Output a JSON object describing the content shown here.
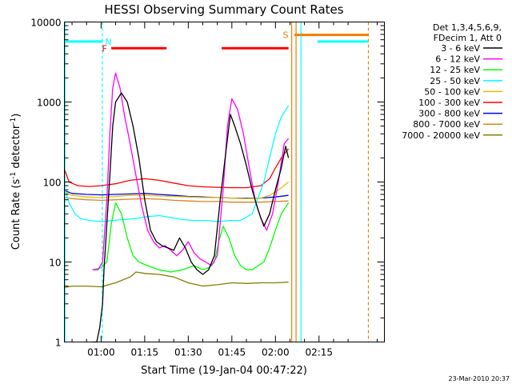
{
  "chart_data": {
    "type": "line",
    "title": "HESSI Observing Summary Count Rates",
    "xlabel": "Start Time (19-Jan-04 00:47:22)",
    "ylabel_main": "Count Rate (s",
    "ylabel_sup1": "-1",
    "ylabel_mid": " detector",
    "ylabel_sup2": "-1",
    "ylabel_end": ")",
    "y_scale": "log",
    "ylim": [
      1,
      10000
    ],
    "xlim_minutes": [
      47.37,
      157.5
    ],
    "x_ticks": [
      {
        "minutes": 60,
        "label": "01:00"
      },
      {
        "minutes": 75,
        "label": "01:15"
      },
      {
        "minutes": 90,
        "label": "01:30"
      },
      {
        "minutes": 105,
        "label": "01:45"
      },
      {
        "minutes": 120,
        "label": "02:00"
      },
      {
        "minutes": 135,
        "label": "02:15"
      }
    ],
    "y_ticks": [
      {
        "value": 1,
        "label": "1"
      },
      {
        "value": 10,
        "label": "10"
      },
      {
        "value": 100,
        "label": "100"
      },
      {
        "value": 1000,
        "label": "1000"
      },
      {
        "value": 10000,
        "label": "10000"
      }
    ],
    "legend_header": [
      "Det 1,3,4,5,6,9,",
      "FDecim 1, Att 0"
    ],
    "legend_position": "right",
    "timestamp": "23-Mar-2010 20:37",
    "series": [
      {
        "name": "3 - 6 keV",
        "color": "#000000",
        "x": [
          57,
          58.5,
          59.5,
          60.5,
          61,
          62,
          63,
          64,
          65,
          67,
          69,
          71,
          73,
          75,
          77,
          79,
          81,
          83,
          85,
          87,
          89,
          91,
          93,
          95,
          97,
          99,
          101,
          103,
          104.5,
          106,
          108,
          110,
          112,
          114,
          116,
          118,
          120,
          122,
          123.5,
          124.5
        ],
        "y": [
          1,
          1,
          1.5,
          3,
          8,
          30,
          120,
          500,
          1000,
          1300,
          1000,
          500,
          200,
          60,
          25,
          18,
          16,
          15,
          14,
          20,
          15,
          10,
          8,
          7,
          8,
          12,
          60,
          250,
          700,
          500,
          300,
          160,
          80,
          45,
          28,
          40,
          80,
          150,
          280,
          200
        ]
      },
      {
        "name": "6 - 12 keV",
        "color": "#ff00ff",
        "x": [
          57,
          59,
          60.5,
          62,
          63,
          64,
          65,
          66.5,
          68,
          70,
          72,
          74,
          76,
          78,
          80,
          82,
          84,
          86,
          88,
          90,
          92,
          94,
          96,
          98,
          100,
          102,
          103.5,
          105,
          107,
          109,
          111,
          113,
          115,
          117,
          119,
          121,
          123,
          124.5
        ],
        "y": [
          8,
          8,
          10,
          60,
          400,
          1500,
          2300,
          1500,
          700,
          300,
          120,
          50,
          25,
          18,
          15,
          16,
          14,
          12,
          14,
          18,
          13,
          11,
          10,
          9,
          12,
          80,
          500,
          1100,
          800,
          400,
          150,
          60,
          35,
          25,
          40,
          100,
          300,
          350
        ]
      },
      {
        "name": "12 - 25 keV",
        "color": "#00ff00",
        "x": [
          57,
          60,
          62,
          63.5,
          65,
          67,
          69,
          71,
          73,
          76,
          80,
          84,
          88,
          92,
          95,
          97,
          99,
          100.5,
          102,
          104,
          106,
          108,
          110,
          112,
          114,
          116,
          118,
          120,
          122,
          124.5
        ],
        "y": [
          8,
          8.5,
          10,
          30,
          55,
          40,
          20,
          12,
          10,
          9,
          8,
          7.5,
          8,
          9,
          8,
          8.5,
          10,
          18,
          28,
          20,
          12,
          9,
          8,
          8,
          9,
          10,
          15,
          25,
          40,
          55
        ]
      },
      {
        "name": "25 - 50 keV",
        "color": "#00ffff",
        "x": [
          47.5,
          49,
          51,
          53,
          56,
          60,
          64,
          68,
          72,
          76,
          80,
          84,
          88,
          92,
          96,
          100,
          104,
          108,
          112,
          116,
          118,
          120,
          122,
          124.5
        ],
        "y": [
          80,
          55,
          40,
          35,
          33,
          32,
          33,
          34,
          35,
          37,
          38,
          36,
          34,
          33,
          33,
          32,
          33,
          33,
          40,
          100,
          200,
          400,
          650,
          900
        ]
      },
      {
        "name": "50 - 100 keV",
        "color": "#e0c000",
        "x": [
          47.5,
          50,
          55,
          60,
          65,
          70,
          75,
          80,
          85,
          90,
          95,
          100,
          105,
          110,
          115,
          118,
          120,
          122,
          124.5
        ],
        "y": [
          75,
          68,
          65,
          64,
          66,
          68,
          68,
          67,
          66,
          65,
          64,
          64,
          63,
          62,
          63,
          68,
          75,
          85,
          100
        ]
      },
      {
        "name": "100 - 300 keV",
        "color": "#ff0000",
        "x": [
          47.5,
          49,
          52,
          56,
          60,
          65,
          70,
          75,
          80,
          85,
          90,
          95,
          100,
          105,
          110,
          115,
          118,
          120,
          122,
          124.5
        ],
        "y": [
          140,
          100,
          90,
          88,
          90,
          95,
          105,
          110,
          105,
          97,
          90,
          87,
          86,
          85,
          85,
          90,
          110,
          150,
          200,
          260
        ]
      },
      {
        "name": "300 - 800 keV",
        "color": "#0000ff",
        "x": [
          47.5,
          50,
          55,
          60,
          65,
          70,
          75,
          80,
          85,
          90,
          95,
          100,
          105,
          110,
          115,
          120,
          124.5
        ],
        "y": [
          78,
          72,
          70,
          69,
          70,
          71,
          72,
          70,
          68,
          66,
          65,
          64,
          63,
          63,
          63,
          65,
          68
        ]
      },
      {
        "name": "800 - 7000 keV",
        "color": "#e08020",
        "x": [
          47.5,
          50,
          55,
          60,
          65,
          70,
          75,
          80,
          85,
          90,
          95,
          100,
          105,
          110,
          115,
          120,
          124.5
        ],
        "y": [
          64,
          62,
          60,
          59,
          60,
          61,
          62,
          61,
          59,
          58,
          57,
          57,
          56,
          56,
          56,
          57,
          58
        ]
      },
      {
        "name": "7000 - 20000 keV",
        "color": "#808000",
        "x": [
          47.5,
          50,
          55,
          60,
          65,
          70,
          72,
          75,
          80,
          85,
          90,
          95,
          100,
          105,
          110,
          115,
          120,
          124.5
        ],
        "y": [
          4.8,
          5.0,
          5.0,
          4.9,
          5.5,
          6.5,
          7.5,
          7.2,
          7.0,
          6.5,
          5.5,
          5.0,
          5.2,
          5.5,
          5.4,
          5.5,
          5.5,
          5.6
        ]
      }
    ],
    "state_bars": [
      {
        "label": "N",
        "color": "#00ffff",
        "y": 5700,
        "segments": [
          [
            47.37,
            60.4
          ]
        ],
        "label_minutes": 60.8,
        "label_side": "right"
      },
      {
        "label": "",
        "color": "#00ffff",
        "y": 5700,
        "segments": [
          [
            134.5,
            151.9
          ]
        ],
        "label_minutes": null,
        "label_side": "right"
      },
      {
        "label": "F",
        "color": "#ff0000",
        "y": 4700,
        "segments": [
          [
            63.5,
            82.5
          ],
          [
            101.5,
            124.5
          ]
        ],
        "label_minutes": 62.6,
        "label_side": "left"
      },
      {
        "label": "S",
        "color": "#f08000",
        "y": 6900,
        "segments": [
          [
            126.5,
            151.9
          ]
        ],
        "label_minutes": 125.0,
        "label_side": "left"
      }
    ],
    "vlines": [
      {
        "minutes": 47.55,
        "color": "#00ffff",
        "style": "solid"
      },
      {
        "minutes": 60.45,
        "color": "#00ffff",
        "style": "dashed"
      },
      {
        "minutes": 125.6,
        "color": "#f08000",
        "style": "solid"
      },
      {
        "minutes": 127.1,
        "color": "#f08000",
        "style": "solid"
      },
      {
        "minutes": 128.8,
        "color": "#00ffff",
        "style": "solid"
      },
      {
        "minutes": 152.0,
        "color": "#f08000",
        "style": "dashed"
      }
    ]
  }
}
